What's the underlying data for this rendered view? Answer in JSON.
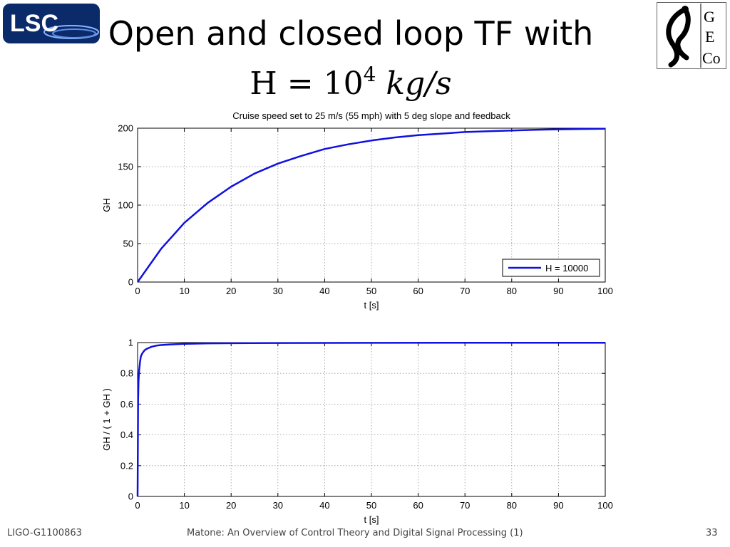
{
  "slide": {
    "title_line1": "Open and closed loop TF with",
    "title_math": {
      "lhs": "H = 10",
      "exp": "4",
      "rhs": " kg/s"
    },
    "footer_left": "LIGO-G1100863",
    "footer_center": "Matone: An Overview of Control Theory and Digital Signal Processing (1)",
    "footer_right": "33",
    "logo_left_text": "LSC",
    "logo_right_text": [
      "G",
      "E",
      "Co"
    ]
  },
  "colors": {
    "series": "#1010e0",
    "grid": "#9a9a9a",
    "lsc_bg": "#0a2a6a"
  },
  "chart_data": [
    {
      "type": "line",
      "title": "Cruise speed set to 25 m/s (55 mph) with 5 deg slope and feedback",
      "xlabel": "t [s]",
      "ylabel": "GH",
      "xlim": [
        0,
        100
      ],
      "ylim": [
        0,
        200
      ],
      "xticks": [
        0,
        10,
        20,
        30,
        40,
        50,
        60,
        70,
        80,
        90,
        100
      ],
      "yticks": [
        0,
        50,
        100,
        150,
        200
      ],
      "grid": true,
      "legend": {
        "position": "bottom-right",
        "entries": [
          "H = 10000"
        ]
      },
      "series": [
        {
          "name": "H = 10000",
          "x": [
            0,
            5,
            10,
            15,
            20,
            25,
            30,
            35,
            40,
            45,
            50,
            55,
            60,
            65,
            70,
            75,
            80,
            85,
            90,
            95,
            100
          ],
          "y": [
            0,
            43,
            77,
            103,
            124,
            141,
            154,
            164,
            173,
            179,
            184,
            188,
            191,
            193,
            195,
            196,
            197,
            198,
            198.5,
            199,
            199.3
          ]
        }
      ]
    },
    {
      "type": "line",
      "title": "",
      "xlabel": "t [s]",
      "ylabel": "GH / ( 1 + GH )",
      "xlim": [
        0,
        100
      ],
      "ylim": [
        0,
        1
      ],
      "xticks": [
        0,
        10,
        20,
        30,
        40,
        50,
        60,
        70,
        80,
        90,
        100
      ],
      "yticks": [
        0,
        0.2,
        0.4,
        0.6,
        0.8,
        1
      ],
      "grid": true,
      "series": [
        {
          "x": [
            0,
            0.1,
            0.2,
            0.3,
            0.5,
            0.7,
            1,
            1.5,
            2,
            3,
            4,
            5,
            7,
            10,
            15,
            20,
            30,
            50,
            75,
            100
          ],
          "y": [
            0,
            0.62,
            0.75,
            0.81,
            0.87,
            0.91,
            0.93,
            0.95,
            0.96,
            0.973,
            0.98,
            0.984,
            0.988,
            0.992,
            0.995,
            0.996,
            0.997,
            0.998,
            0.999,
            0.999
          ]
        }
      ]
    }
  ]
}
